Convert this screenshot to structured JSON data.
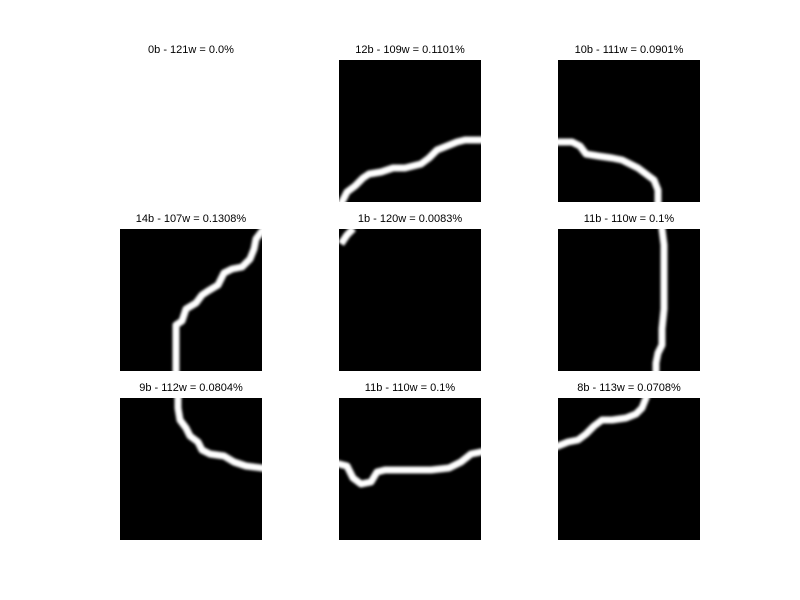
{
  "colors": {
    "background": "#ffffff",
    "tile": "#000000",
    "edge": "#ffffff"
  },
  "panels": [
    {
      "label": "0b - 121w = 0.0%",
      "black_pixels": 0,
      "white_pixels": 121,
      "ratio": "0.0%",
      "empty": true
    },
    {
      "label": "12b - 109w = 0.1101%",
      "black_pixels": 12,
      "white_pixels": 109,
      "ratio": "0.1101%",
      "empty": false
    },
    {
      "label": "10b - 111w = 0.0901%",
      "black_pixels": 10,
      "white_pixels": 111,
      "ratio": "0.0901%",
      "empty": false
    },
    {
      "label": "14b - 107w = 0.1308%",
      "black_pixels": 14,
      "white_pixels": 107,
      "ratio": "0.1308%",
      "empty": false
    },
    {
      "label": "1b - 120w = 0.0083%",
      "black_pixels": 1,
      "white_pixels": 120,
      "ratio": "0.0083%",
      "empty": false
    },
    {
      "label": "11b - 110w = 0.1%",
      "black_pixels": 11,
      "white_pixels": 110,
      "ratio": "0.1%",
      "empty": false
    },
    {
      "label": "9b - 112w = 0.0804%",
      "black_pixels": 9,
      "white_pixels": 112,
      "ratio": "0.0804%",
      "empty": false
    },
    {
      "label": "11b - 110w = 0.1%",
      "black_pixels": 11,
      "white_pixels": 110,
      "ratio": "0.1%",
      "empty": false
    },
    {
      "label": "8b - 113w = 0.0708%",
      "black_pixels": 8,
      "white_pixels": 113,
      "ratio": "0.0708%",
      "empty": false
    }
  ]
}
